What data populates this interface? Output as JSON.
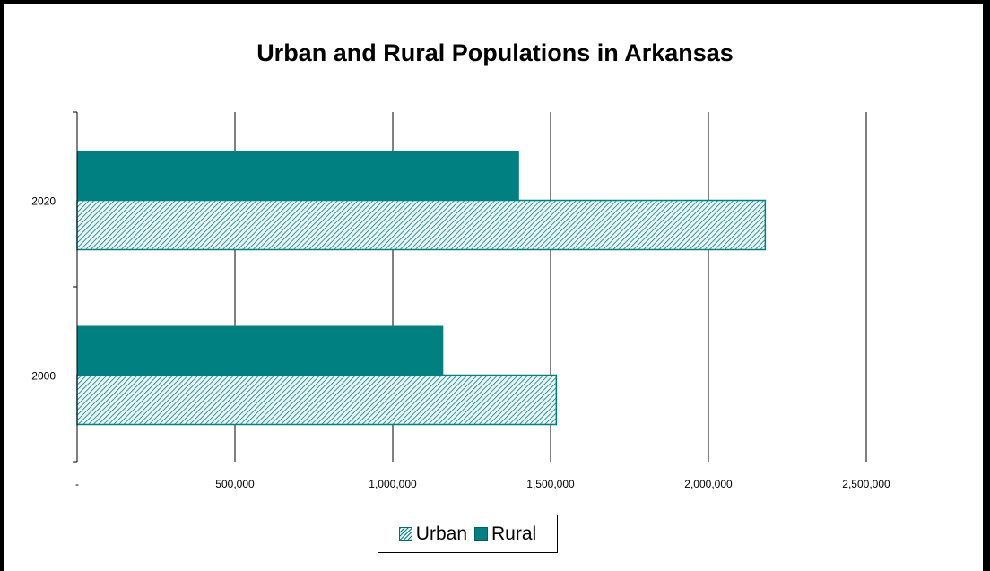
{
  "chart_data": {
    "type": "bar",
    "orientation": "horizontal",
    "title": "Urban and Rural Populations in Arkansas",
    "categories": [
      "2000",
      "2020"
    ],
    "series": [
      {
        "name": "Urban",
        "values": [
          1518000,
          2180000
        ],
        "color": "#008080",
        "pattern": "hatched"
      },
      {
        "name": "Rural",
        "values": [
          1160000,
          1400000
        ],
        "color": "#008080",
        "pattern": "solid"
      }
    ],
    "xlim": [
      0,
      2500000
    ],
    "x_ticks": [
      0,
      500000,
      1000000,
      1500000,
      2000000,
      2500000
    ],
    "x_tick_labels": [
      "-",
      "500,000",
      "1,000,000",
      "1,500,000",
      "2,000,000",
      "2,500,000"
    ],
    "grid": "vertical",
    "legend": "bottom"
  },
  "legend": {
    "urban_label": "Urban",
    "rural_label": "Rural"
  }
}
